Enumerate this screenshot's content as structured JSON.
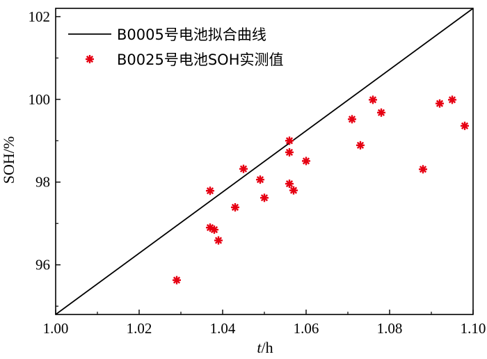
{
  "chart_data": {
    "type": "scatter",
    "xlabel": "t /h",
    "xlabel_var": "t",
    "xlabel_unit": "/h",
    "ylabel": "SOH/%",
    "xlim": [
      1.0,
      1.1
    ],
    "ylim": [
      94.8,
      102.2
    ],
    "xticks": [
      "1.00",
      "1.02",
      "1.04",
      "1.06",
      "1.08",
      "1.10"
    ],
    "yticks": [
      "96",
      "98",
      "100",
      "102"
    ],
    "grid": false,
    "legend_position": "top-left",
    "series": [
      {
        "name": "B0005号电池拟合曲线",
        "kind": "line",
        "color": "#000000",
        "x": [
          1.0,
          1.1
        ],
        "y": [
          94.8,
          102.2
        ]
      },
      {
        "name": "B0025号电池SOH实测值",
        "kind": "scatter",
        "marker": "asterisk",
        "color": "#e60012",
        "points": [
          [
            1.029,
            95.63
          ],
          [
            1.037,
            97.79
          ],
          [
            1.037,
            96.9
          ],
          [
            1.038,
            96.85
          ],
          [
            1.039,
            96.59
          ],
          [
            1.043,
            97.39
          ],
          [
            1.045,
            98.32
          ],
          [
            1.049,
            98.06
          ],
          [
            1.05,
            97.62
          ],
          [
            1.056,
            99.0
          ],
          [
            1.056,
            98.72
          ],
          [
            1.056,
            97.96
          ],
          [
            1.057,
            97.8
          ],
          [
            1.06,
            98.51
          ],
          [
            1.071,
            99.52
          ],
          [
            1.073,
            98.89
          ],
          [
            1.076,
            99.99
          ],
          [
            1.078,
            99.68
          ],
          [
            1.088,
            98.31
          ],
          [
            1.092,
            99.9
          ],
          [
            1.095,
            99.99
          ],
          [
            1.098,
            99.36
          ]
        ]
      }
    ]
  }
}
